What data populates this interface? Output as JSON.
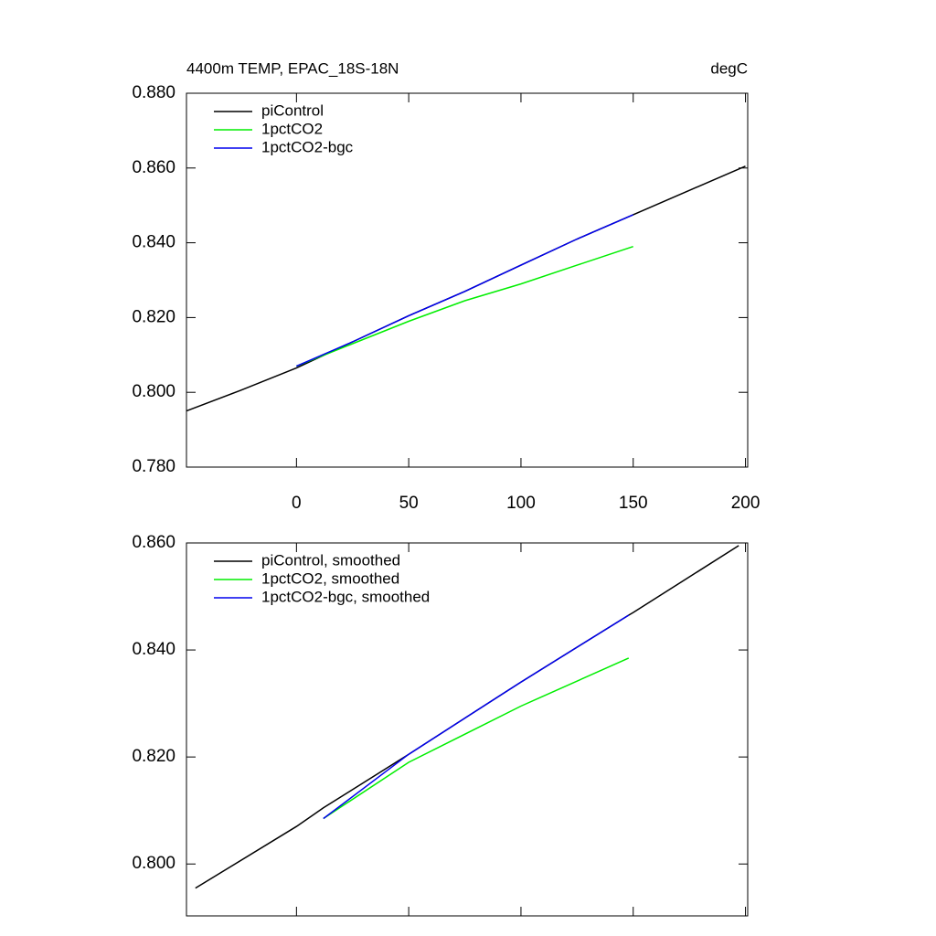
{
  "chart_data": [
    {
      "type": "line",
      "title": "4400m TEMP, EPAC_18S-18N",
      "units": "degC",
      "x": [
        -49,
        -25,
        0,
        25,
        50,
        75,
        100,
        125,
        150,
        175,
        200
      ],
      "series": [
        {
          "name": "piControl",
          "color": "#000000",
          "values": [
            0.795,
            0.8005,
            0.8065,
            0.8135,
            0.8205,
            0.827,
            0.834,
            0.841,
            0.8475,
            0.854,
            0.8605
          ]
        },
        {
          "name": "1pctCO2",
          "color": "#00ee00",
          "values": [
            null,
            null,
            0.807,
            0.813,
            0.819,
            0.8245,
            0.829,
            0.834,
            0.839,
            null,
            null
          ]
        },
        {
          "name": "1pctCO2-bgc",
          "color": "#0000ee",
          "values": [
            null,
            null,
            0.807,
            0.8135,
            0.8205,
            0.827,
            0.834,
            0.841,
            0.8475,
            null,
            null
          ]
        }
      ],
      "xlim": [
        -49,
        201
      ],
      "xticks": [
        0,
        50,
        100,
        150,
        200
      ],
      "show_xtick_labels": true,
      "ylim": [
        0.78,
        0.88
      ],
      "yticks": [
        {
          "value": 0.78,
          "label": "0.780"
        },
        {
          "value": 0.8,
          "label": "0.800"
        },
        {
          "value": 0.82,
          "label": "0.820"
        },
        {
          "value": 0.84,
          "label": "0.840"
        },
        {
          "value": 0.86,
          "label": "0.860"
        },
        {
          "value": 0.88,
          "label": "0.880"
        }
      ],
      "legend": "top-left"
    },
    {
      "type": "line",
      "x": [
        -45,
        0,
        12,
        50,
        100,
        148,
        150,
        197
      ],
      "series": [
        {
          "name": "piControl, smoothed",
          "color": "#000000",
          "values": [
            0.7955,
            0.807,
            0.8105,
            0.8205,
            0.834,
            0.8465,
            0.847,
            0.8595
          ]
        },
        {
          "name": "1pctCO2, smoothed",
          "color": "#00ee00",
          "values": [
            null,
            null,
            0.8085,
            0.819,
            0.8295,
            0.8385,
            null,
            null
          ]
        },
        {
          "name": "1pctCO2-bgc, smoothed",
          "color": "#0000ee",
          "values": [
            null,
            null,
            0.8085,
            0.8205,
            0.834,
            0.8465,
            null,
            null
          ]
        }
      ],
      "xlim": [
        -49,
        201
      ],
      "xticks": [
        0,
        50,
        100,
        150,
        200
      ],
      "show_xtick_labels": false,
      "ylim": [
        0.7903,
        0.86
      ],
      "yticks": [
        {
          "value": 0.8,
          "label": "0.800"
        },
        {
          "value": 0.82,
          "label": "0.820"
        },
        {
          "value": 0.84,
          "label": "0.840"
        },
        {
          "value": 0.86,
          "label": "0.860"
        }
      ],
      "legend": "top-left"
    }
  ]
}
